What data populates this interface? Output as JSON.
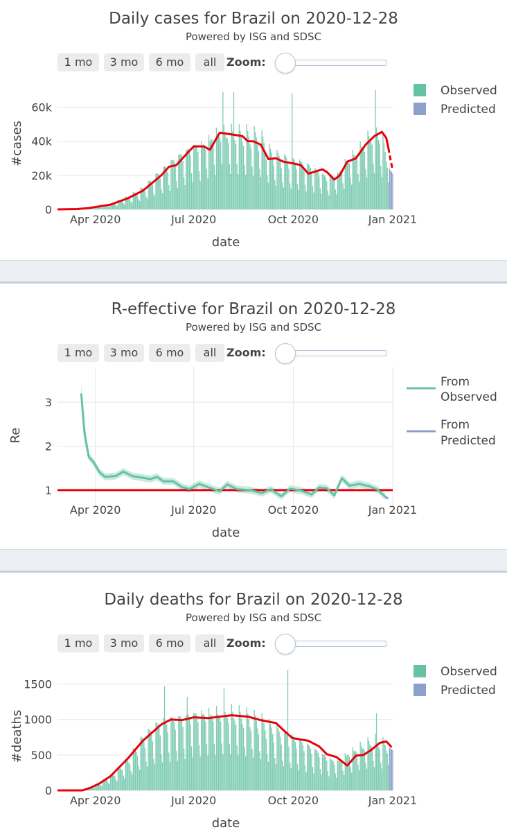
{
  "panels": [
    {
      "title": "Daily cases for Brazil on 2020-12-28",
      "subtitle": "Powered by ISG and SDSC",
      "buttons": [
        "1 mo",
        "3 mo",
        "6 mo",
        "all"
      ],
      "zoom_label": "Zoom:"
    },
    {
      "title": "R-effective for Brazil on 2020-12-28",
      "subtitle": "Powered by ISG and SDSC",
      "buttons": [
        "1 mo",
        "3 mo",
        "6 mo",
        "all"
      ],
      "zoom_label": "Zoom:"
    },
    {
      "title": "Daily deaths for Brazil on 2020-12-28",
      "subtitle": "Powered by ISG and SDSC",
      "buttons": [
        "1 mo",
        "3 mo",
        "6 mo",
        "all"
      ],
      "zoom_label": "Zoom:"
    }
  ],
  "colors": {
    "observed": "#66c2a5",
    "predicted": "#8da0cb",
    "trend": "#e8000b",
    "grid": "#e5e5e5"
  },
  "chart_data": [
    {
      "type": "bar",
      "title": "Daily cases for Brazil on 2020-12-28",
      "xlabel": "date",
      "ylabel": "#cases",
      "x_tick_labels": [
        "Apr 2020",
        "Jul 2020",
        "Oct 2020",
        "Jan 2021"
      ],
      "x_tick_dates": [
        "2020-04-01",
        "2020-07-01",
        "2020-10-01",
        "2021-01-01"
      ],
      "x_range": [
        "2020-02-26",
        "2021-01-01"
      ],
      "y_ticks": [
        0,
        20000,
        40000,
        60000
      ],
      "y_tick_labels": [
        "0",
        "20k",
        "40k",
        "60k"
      ],
      "ylim": [
        0,
        70000
      ],
      "legend": [
        "Observed",
        "Predicted"
      ],
      "legend_position": "top-right",
      "series": [
        {
          "name": "Observed",
          "kind": "bar",
          "date_range": [
            "2020-02-26",
            "2020-12-28"
          ],
          "baseline_points": [
            [
              "2020-02-26",
              0
            ],
            [
              "2020-03-15",
              200
            ],
            [
              "2020-03-25",
              700
            ],
            [
              "2020-04-05",
              1800
            ],
            [
              "2020-04-15",
              2800
            ],
            [
              "2020-05-01",
              6500
            ],
            [
              "2020-05-15",
              11000
            ],
            [
              "2020-06-01",
              20000
            ],
            [
              "2020-06-15",
              27000
            ],
            [
              "2020-07-01",
              34000
            ],
            [
              "2020-07-10",
              35000
            ],
            [
              "2020-07-20",
              40000
            ],
            [
              "2020-07-25",
              41000
            ],
            [
              "2020-08-05",
              41000
            ],
            [
              "2020-08-20",
              40000
            ],
            [
              "2020-09-01",
              38000
            ],
            [
              "2020-09-10",
              30000
            ],
            [
              "2020-09-20",
              27000
            ],
            [
              "2020-10-05",
              25000
            ],
            [
              "2020-10-15",
              23000
            ],
            [
              "2020-10-25",
              20000
            ],
            [
              "2020-11-01",
              17000
            ],
            [
              "2020-11-10",
              18000
            ],
            [
              "2020-11-20",
              27000
            ],
            [
              "2020-12-01",
              32000
            ],
            [
              "2020-12-15",
              42000
            ],
            [
              "2020-12-20",
              42000
            ],
            [
              "2020-12-28",
              25000
            ]
          ],
          "peaks": [
            [
              "2020-07-28",
              69000
            ],
            [
              "2020-08-07",
              69000
            ],
            [
              "2020-09-30",
              68000
            ],
            [
              "2020-12-16",
              70000
            ]
          ]
        },
        {
          "name": "Predicted",
          "kind": "bar",
          "date_range": [
            "2020-12-29",
            "2021-01-01"
          ],
          "values": [
            24000,
            23000,
            22000,
            21000
          ]
        },
        {
          "name": "Observed 7-day average",
          "kind": "line",
          "points": [
            [
              "2020-02-26",
              0
            ],
            [
              "2020-03-15",
              200
            ],
            [
              "2020-03-25",
              700
            ],
            [
              "2020-04-05",
              1800
            ],
            [
              "2020-04-15",
              2800
            ],
            [
              "2020-05-01",
              6500
            ],
            [
              "2020-05-15",
              11000
            ],
            [
              "2020-06-01",
              20000
            ],
            [
              "2020-06-08",
              25000
            ],
            [
              "2020-06-15",
              26000
            ],
            [
              "2020-06-25",
              33000
            ],
            [
              "2020-07-01",
              37000
            ],
            [
              "2020-07-10",
              37000
            ],
            [
              "2020-07-16",
              35000
            ],
            [
              "2020-07-25",
              45000
            ],
            [
              "2020-08-05",
              44000
            ],
            [
              "2020-08-15",
              43000
            ],
            [
              "2020-08-20",
              40000
            ],
            [
              "2020-08-25",
              40000
            ],
            [
              "2020-09-01",
              38000
            ],
            [
              "2020-09-08",
              29500
            ],
            [
              "2020-09-15",
              30000
            ],
            [
              "2020-09-22",
              28000
            ],
            [
              "2020-10-01",
              27000
            ],
            [
              "2020-10-08",
              26000
            ],
            [
              "2020-10-15",
              21000
            ],
            [
              "2020-10-28",
              23500
            ],
            [
              "2020-11-01",
              22000
            ],
            [
              "2020-11-08",
              17500
            ],
            [
              "2020-11-13",
              20000
            ],
            [
              "2020-11-20",
              28000
            ],
            [
              "2020-11-28",
              30000
            ],
            [
              "2020-12-07",
              38000
            ],
            [
              "2020-12-15",
              43000
            ],
            [
              "2020-12-22",
              45500
            ],
            [
              "2020-12-26",
              42000
            ],
            [
              "2020-12-28",
              36000
            ]
          ]
        },
        {
          "name": "Predicted trend",
          "kind": "dashed-line",
          "points": [
            [
              "2020-12-28",
              36000
            ],
            [
              "2020-12-30",
              29000
            ],
            [
              "2021-01-01",
              23000
            ]
          ]
        }
      ]
    },
    {
      "type": "line",
      "title": "R-effective for Brazil on 2020-12-28",
      "xlabel": "date",
      "ylabel": "Re",
      "x_tick_labels": [
        "Apr 2020",
        "Jul 2020",
        "Oct 2020",
        "Jan 2021"
      ],
      "x_tick_dates": [
        "2020-04-01",
        "2020-07-01",
        "2020-10-01",
        "2021-01-01"
      ],
      "x_range": [
        "2020-02-26",
        "2021-01-01"
      ],
      "y_ticks": [
        1,
        2,
        3
      ],
      "ylim": [
        0.65,
        3.65
      ],
      "reference_line": 1,
      "legend": [
        "From Observed",
        "From Predicted"
      ],
      "legend_position": "top-right",
      "series": [
        {
          "name": "From Observed",
          "points": [
            [
              "2020-03-19",
              3.2
            ],
            [
              "2020-03-22",
              2.3
            ],
            [
              "2020-03-26",
              1.75
            ],
            [
              "2020-03-30",
              1.65
            ],
            [
              "2020-04-05",
              1.4
            ],
            [
              "2020-04-10",
              1.3
            ],
            [
              "2020-04-20",
              1.32
            ],
            [
              "2020-04-27",
              1.42
            ],
            [
              "2020-05-05",
              1.32
            ],
            [
              "2020-05-15",
              1.28
            ],
            [
              "2020-05-22",
              1.25
            ],
            [
              "2020-05-28",
              1.3
            ],
            [
              "2020-06-03",
              1.2
            ],
            [
              "2020-06-12",
              1.2
            ],
            [
              "2020-06-20",
              1.07
            ],
            [
              "2020-06-27",
              1.02
            ],
            [
              "2020-07-06",
              1.14
            ],
            [
              "2020-07-16",
              1.05
            ],
            [
              "2020-07-25",
              0.97
            ],
            [
              "2020-08-01",
              1.13
            ],
            [
              "2020-08-10",
              1.02
            ],
            [
              "2020-08-22",
              1.0
            ],
            [
              "2020-09-02",
              0.93
            ],
            [
              "2020-09-10",
              1.02
            ],
            [
              "2020-09-20",
              0.86
            ],
            [
              "2020-09-28",
              1.03
            ],
            [
              "2020-10-08",
              0.99
            ],
            [
              "2020-10-18",
              0.9
            ],
            [
              "2020-10-25",
              1.06
            ],
            [
              "2020-11-01",
              1.04
            ],
            [
              "2020-11-08",
              0.88
            ],
            [
              "2020-11-15",
              1.27
            ],
            [
              "2020-11-22",
              1.1
            ],
            [
              "2020-12-01",
              1.14
            ],
            [
              "2020-12-10",
              1.09
            ],
            [
              "2020-12-18",
              1.01
            ],
            [
              "2020-12-25",
              0.85
            ]
          ],
          "band_width": 0.08
        },
        {
          "name": "From Predicted",
          "points": [
            [
              "2020-12-25",
              0.85
            ],
            [
              "2020-12-28",
              0.8
            ]
          ]
        }
      ]
    },
    {
      "type": "bar",
      "title": "Daily deaths for Brazil on 2020-12-28",
      "xlabel": "date",
      "ylabel": "#deaths",
      "x_tick_labels": [
        "Apr 2020",
        "Jul 2020",
        "Oct 2020",
        "Jan 2021"
      ],
      "x_tick_dates": [
        "2020-04-01",
        "2020-07-01",
        "2020-10-01",
        "2021-01-01"
      ],
      "x_range": [
        "2020-02-26",
        "2021-01-01"
      ],
      "y_ticks": [
        0,
        500,
        1000,
        1500
      ],
      "ylim": [
        0,
        1750
      ],
      "legend": [
        "Observed",
        "Predicted"
      ],
      "legend_position": "top-right",
      "series": [
        {
          "name": "Observed",
          "kind": "bar",
          "date_range": [
            "2020-02-26",
            "2020-12-28"
          ],
          "baseline_points": [
            [
              "2020-02-26",
              0
            ],
            [
              "2020-03-17",
              0
            ],
            [
              "2020-03-25",
              30
            ],
            [
              "2020-04-05",
              100
            ],
            [
              "2020-04-15",
              180
            ],
            [
              "2020-05-01",
              380
            ],
            [
              "2020-05-15",
              650
            ],
            [
              "2020-06-01",
              850
            ],
            [
              "2020-06-15",
              900
            ],
            [
              "2020-07-01",
              980
            ],
            [
              "2020-07-15",
              1000
            ],
            [
              "2020-08-01",
              1010
            ],
            [
              "2020-08-15",
              960
            ],
            [
              "2020-09-01",
              880
            ],
            [
              "2020-09-15",
              750
            ],
            [
              "2020-10-01",
              650
            ],
            [
              "2020-10-15",
              560
            ],
            [
              "2020-11-01",
              430
            ],
            [
              "2020-11-10",
              360
            ],
            [
              "2020-11-20",
              470
            ],
            [
              "2020-12-01",
              560
            ],
            [
              "2020-12-15",
              650
            ],
            [
              "2020-12-20",
              620
            ],
            [
              "2020-12-28",
              570
            ]
          ],
          "peaks": [
            [
              "2020-06-04",
              1470
            ],
            [
              "2020-06-25",
              1320
            ],
            [
              "2020-07-29",
              1440
            ],
            [
              "2020-09-26",
              1700
            ],
            [
              "2020-12-17",
              1090
            ]
          ]
        },
        {
          "name": "Predicted",
          "kind": "bar",
          "date_range": [
            "2020-12-29",
            "2021-01-01"
          ],
          "values": [
            600,
            590,
            580,
            570
          ]
        },
        {
          "name": "Observed 7-day average",
          "kind": "line",
          "points": [
            [
              "2020-02-26",
              0
            ],
            [
              "2020-03-20",
              0
            ],
            [
              "2020-03-28",
              40
            ],
            [
              "2020-04-05",
              100
            ],
            [
              "2020-04-15",
              200
            ],
            [
              "2020-05-01",
              450
            ],
            [
              "2020-05-15",
              700
            ],
            [
              "2020-06-01",
              930
            ],
            [
              "2020-06-10",
              1000
            ],
            [
              "2020-06-20",
              990
            ],
            [
              "2020-07-01",
              1030
            ],
            [
              "2020-07-15",
              1020
            ],
            [
              "2020-07-25",
              1040
            ],
            [
              "2020-08-05",
              1060
            ],
            [
              "2020-08-20",
              1040
            ],
            [
              "2020-09-01",
              990
            ],
            [
              "2020-09-15",
              950
            ],
            [
              "2020-09-22",
              850
            ],
            [
              "2020-09-30",
              740
            ],
            [
              "2020-10-07",
              720
            ],
            [
              "2020-10-15",
              700
            ],
            [
              "2020-10-25",
              620
            ],
            [
              "2020-11-01",
              510
            ],
            [
              "2020-11-10",
              470
            ],
            [
              "2020-11-20",
              350
            ],
            [
              "2020-11-28",
              490
            ],
            [
              "2020-12-05",
              500
            ],
            [
              "2020-12-12",
              570
            ],
            [
              "2020-12-20",
              670
            ],
            [
              "2020-12-26",
              690
            ],
            [
              "2020-12-28",
              660
            ]
          ]
        },
        {
          "name": "Predicted trend",
          "kind": "dashed-line",
          "points": [
            [
              "2020-12-28",
              660
            ],
            [
              "2021-01-01",
              590
            ]
          ]
        }
      ]
    }
  ]
}
